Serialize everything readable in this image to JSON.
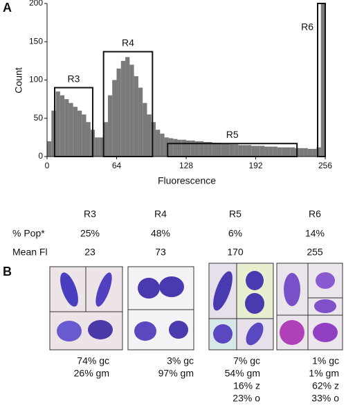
{
  "chart_data": {
    "type": "histogram",
    "panel_label": "A",
    "xlabel": "Fluorescence",
    "ylabel": "Count",
    "bins": [
      0,
      4,
      8,
      12,
      16,
      20,
      24,
      28,
      32,
      36,
      40,
      44,
      48,
      52,
      56,
      60,
      64,
      68,
      72,
      76,
      80,
      84,
      88,
      92,
      96,
      100,
      104,
      108,
      112,
      116,
      120,
      124,
      128,
      132,
      136,
      140,
      144,
      148,
      152,
      156,
      160,
      164,
      168,
      172,
      176,
      180,
      184,
      188,
      192,
      196,
      200,
      204,
      208,
      212,
      216,
      220,
      224,
      228,
      232,
      236,
      240,
      244,
      248,
      252,
      256
    ],
    "values": [
      20,
      60,
      85,
      80,
      75,
      70,
      65,
      60,
      55,
      45,
      35,
      25,
      25,
      45,
      80,
      100,
      115,
      125,
      130,
      120,
      105,
      90,
      70,
      55,
      45,
      35,
      30,
      25,
      24,
      23,
      22,
      22,
      21,
      21,
      20,
      20,
      19,
      19,
      18,
      18,
      17,
      17,
      16,
      16,
      15,
      15,
      15,
      14,
      14,
      14,
      13,
      13,
      13,
      12,
      12,
      12,
      12,
      11,
      11,
      11,
      10,
      10,
      12,
      200
    ],
    "color": "#7a7a7a",
    "xlim": [
      0,
      256
    ],
    "xticks": [
      0,
      64,
      128,
      192,
      256
    ],
    "ylim": [
      0,
      200
    ],
    "yticks": [
      0,
      50,
      100,
      150,
      200
    ],
    "regions": [
      {
        "label": "R3",
        "x": [
          7,
          42
        ],
        "top": 90
      },
      {
        "label": "R4",
        "x": [
          52,
          97
        ],
        "top": 137
      },
      {
        "label": "R5",
        "x": [
          111,
          230
        ],
        "top": 17
      },
      {
        "label": "R6",
        "x": [
          249,
          256
        ],
        "top": 200
      }
    ]
  },
  "table": {
    "columns": [
      "R3",
      "R4",
      "R5",
      "R6"
    ],
    "rows": [
      [
        "% Pop*",
        "25%",
        "48%",
        "6%",
        "14%"
      ],
      [
        "Mean Fl",
        "23",
        "73",
        "170",
        "255"
      ]
    ]
  },
  "panel_b": {
    "label": "B",
    "captions": [
      [
        "74% gc",
        "26% gm"
      ],
      [
        "3% gc",
        "97% gm"
      ],
      [
        "7% gc",
        "54% gm",
        "16% z",
        "23% o"
      ],
      [
        "1% gc",
        "1% gm",
        "62% z",
        "33% o"
      ]
    ]
  }
}
